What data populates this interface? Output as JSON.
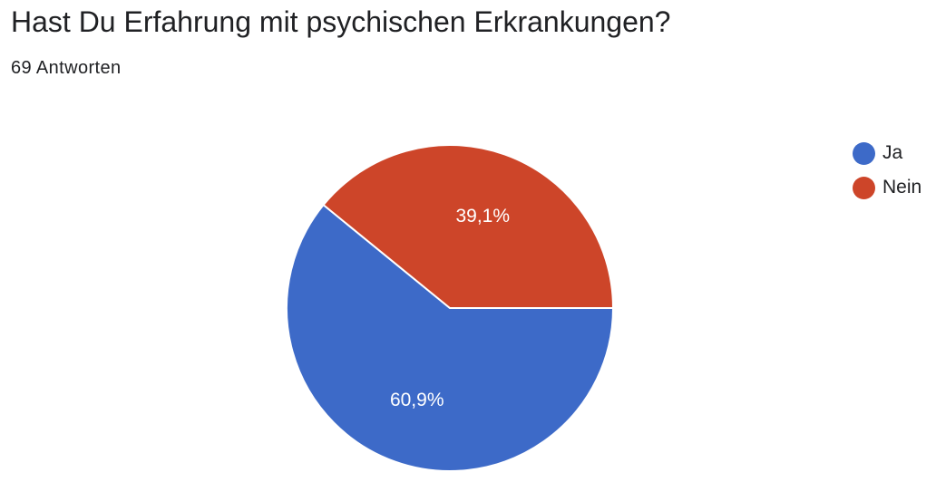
{
  "header": {
    "title": "Hast Du Erfahrung mit psychischen Erkrankungen?",
    "response_count": "69 Antworten"
  },
  "chart_data": {
    "type": "pie",
    "categories": [
      "Ja",
      "Nein"
    ],
    "values": [
      60.9,
      39.1
    ],
    "value_labels": [
      "60,9%",
      "39,1%"
    ],
    "colors": [
      "#3d6ac8",
      "#cd4529"
    ],
    "legend": {
      "placement": "right",
      "entries": [
        {
          "label": "Ja",
          "color": "#3d6ac8"
        },
        {
          "label": "Nein",
          "color": "#cd4529"
        }
      ]
    }
  }
}
